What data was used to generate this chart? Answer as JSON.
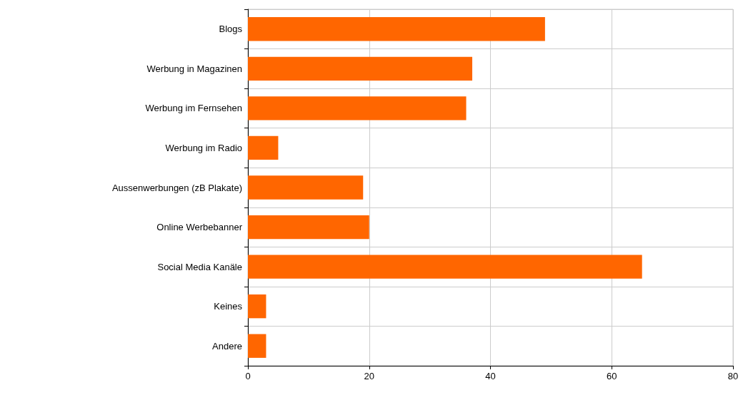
{
  "chart_data": {
    "type": "bar",
    "orientation": "horizontal",
    "categories": [
      "Blogs",
      "Werbung in Magazinen",
      "Werbung im Fernsehen",
      "Werbung im Radio",
      "Aussenwerbungen (zB Plakate)",
      "Online Werbebanner",
      "Social Media Kanäle",
      "Keines",
      "Andere"
    ],
    "values": [
      49,
      37,
      36,
      5,
      19,
      20,
      65,
      3,
      3
    ],
    "color": "#ff6600",
    "xlim": [
      0,
      80
    ],
    "xticks": [
      0,
      20,
      40,
      60,
      80
    ],
    "grid": true
  }
}
